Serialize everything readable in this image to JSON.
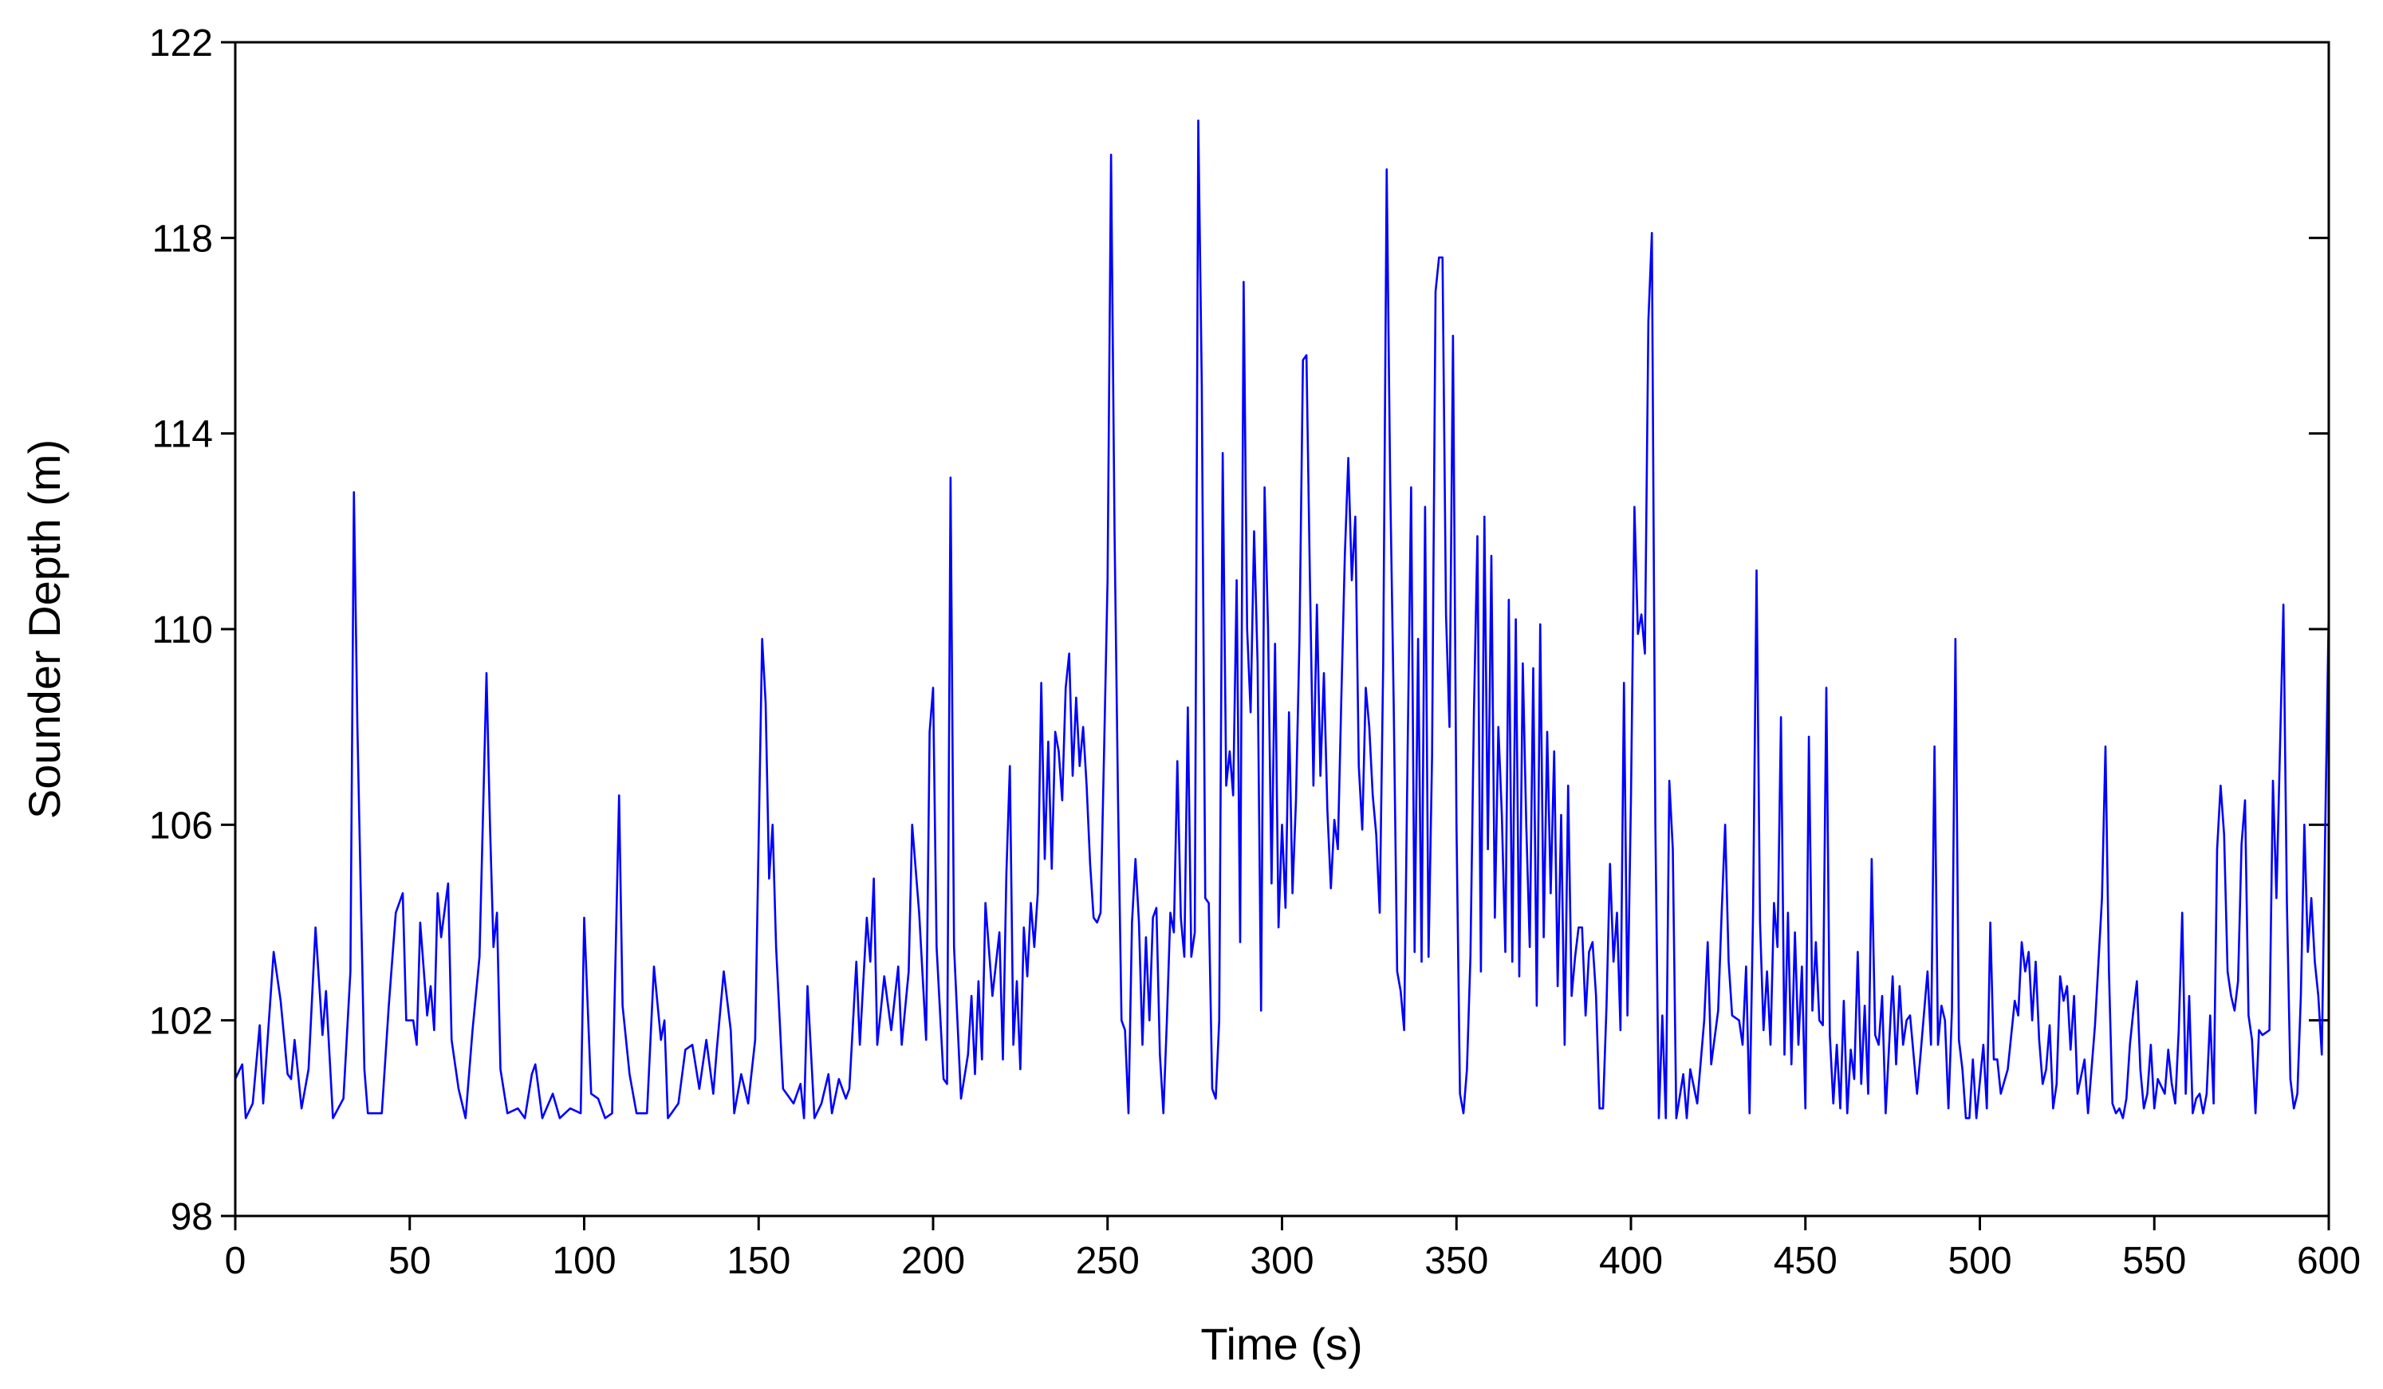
{
  "chart_data": {
    "type": "line",
    "xlabel": "Time (s)",
    "ylabel": "Sounder Depth (m)",
    "color": "#0000ff",
    "xlim": [
      0,
      600
    ],
    "ylim": [
      98,
      122
    ],
    "xticks": [
      0,
      50,
      100,
      150,
      200,
      250,
      300,
      350,
      400,
      450,
      500,
      550,
      600
    ],
    "yticks": [
      98,
      102,
      106,
      110,
      114,
      118,
      122
    ],
    "x": [
      0,
      2,
      3,
      5,
      7,
      8,
      11,
      13,
      15,
      16,
      17,
      19,
      21,
      23,
      25,
      26,
      28,
      31,
      33,
      34,
      35,
      37,
      38,
      42,
      44,
      46,
      48,
      49,
      51,
      52,
      53,
      55,
      56,
      57,
      58,
      59,
      61,
      62,
      64,
      66,
      68,
      70,
      72,
      73,
      74,
      75,
      76,
      78,
      81,
      83,
      85,
      86,
      88,
      91,
      93,
      96,
      99,
      100,
      102,
      104,
      106,
      108,
      110,
      111,
      113,
      115,
      118,
      120,
      122,
      123,
      124,
      127,
      129,
      131,
      133,
      135,
      137,
      138,
      140,
      142,
      143,
      145,
      147,
      149,
      151,
      152,
      153,
      154,
      155,
      157,
      160,
      162,
      163,
      164,
      166,
      168,
      170,
      171,
      173,
      175,
      176,
      178,
      179,
      181,
      182,
      183,
      184,
      186,
      188,
      190,
      191,
      193,
      194,
      196,
      198,
      199,
      200,
      201,
      203,
      204,
      205,
      206,
      208,
      210,
      211,
      212,
      213,
      214,
      215,
      217,
      219,
      220,
      221,
      222,
      223,
      224,
      225,
      226,
      227,
      228,
      229,
      230,
      231,
      232,
      233,
      234,
      235,
      236,
      237,
      238,
      239,
      240,
      241,
      242,
      243,
      244,
      245,
      246,
      247,
      248,
      249,
      250,
      251,
      252,
      253,
      254,
      255,
      256,
      257,
      258,
      259,
      260,
      261,
      262,
      263,
      264,
      265,
      266,
      267,
      268,
      269,
      270,
      271,
      272,
      273,
      274,
      275,
      276,
      277,
      278,
      279,
      280,
      281,
      282,
      283,
      284,
      285,
      286,
      287,
      288,
      289,
      290,
      291,
      292,
      293,
      294,
      295,
      296,
      297,
      298,
      299,
      300,
      301,
      302,
      303,
      304,
      305,
      306,
      307,
      308,
      309,
      310,
      311,
      312,
      313,
      314,
      315,
      316,
      317,
      318,
      319,
      320,
      321,
      322,
      323,
      324,
      325,
      326,
      327,
      328,
      329,
      330,
      331,
      332,
      333,
      334,
      335,
      336,
      337,
      338,
      339,
      340,
      341,
      342,
      343,
      344,
      345,
      346,
      347,
      348,
      349,
      350,
      351,
      352,
      353,
      354,
      355,
      356,
      357,
      358,
      359,
      360,
      361,
      362,
      363,
      364,
      365,
      366,
      367,
      368,
      369,
      370,
      371,
      372,
      373,
      374,
      375,
      376,
      377,
      378,
      379,
      380,
      381,
      382,
      383,
      384,
      385,
      386,
      387,
      388,
      389,
      390,
      391,
      392,
      393,
      394,
      395,
      396,
      397,
      398,
      399,
      400,
      401,
      402,
      403,
      404,
      405,
      406,
      407,
      408,
      409,
      410,
      411,
      412,
      413,
      415,
      416,
      417,
      419,
      421,
      422,
      423,
      425,
      426,
      427,
      428,
      429,
      431,
      432,
      433,
      434,
      435,
      436,
      437,
      438,
      439,
      440,
      441,
      442,
      443,
      444,
      445,
      446,
      447,
      448,
      449,
      450,
      451,
      452,
      453,
      454,
      455,
      456,
      457,
      458,
      459,
      460,
      461,
      462,
      463,
      464,
      465,
      466,
      467,
      468,
      469,
      470,
      471,
      472,
      473,
      475,
      476,
      477,
      478,
      479,
      480,
      482,
      483,
      485,
      486,
      487,
      488,
      489,
      490,
      491,
      492,
      493,
      494,
      495,
      496,
      497,
      498,
      499,
      501,
      502,
      503,
      504,
      505,
      506,
      508,
      510,
      511,
      512,
      513,
      514,
      515,
      516,
      517,
      518,
      519,
      520,
      521,
      522,
      523,
      524,
      525,
      526,
      527,
      528,
      530,
      531,
      533,
      535,
      536,
      537,
      538,
      539,
      540,
      541,
      542,
      543,
      544,
      545,
      546,
      547,
      548,
      549,
      550,
      551,
      553,
      554,
      555,
      556,
      557,
      558,
      559,
      560,
      561,
      562,
      563,
      564,
      565,
      566,
      567,
      568,
      569,
      570,
      571,
      572,
      573,
      574,
      575,
      576,
      577,
      578,
      579,
      580,
      581,
      583,
      584,
      585,
      586,
      587,
      588,
      589,
      590,
      591,
      592,
      593,
      594,
      595,
      596,
      597,
      598,
      599,
      600
    ],
    "values": [
      100.8,
      101.1,
      100,
      100.3,
      101.9,
      100.3,
      103.4,
      102.4,
      100.9,
      100.8,
      101.6,
      100.2,
      101,
      103.9,
      101.7,
      102.6,
      100,
      100.4,
      103,
      112.8,
      108,
      101,
      100.1,
      100.1,
      102.3,
      104.2,
      104.6,
      102,
      102,
      101.5,
      104,
      102.1,
      102.7,
      101.8,
      104.6,
      103.7,
      104.8,
      101.6,
      100.6,
      100,
      101.8,
      103.3,
      109.1,
      106,
      103.5,
      104.2,
      101,
      100.1,
      100.2,
      100,
      100.9,
      101.1,
      100,
      100.5,
      100,
      100.2,
      100.1,
      104.1,
      100.5,
      100.4,
      100,
      100.1,
      106.6,
      102.3,
      100.9,
      100.1,
      100.1,
      103.1,
      101.6,
      102,
      100,
      100.3,
      101.4,
      101.5,
      100.6,
      101.6,
      100.5,
      101.4,
      103,
      101.8,
      100.1,
      100.9,
      100.3,
      101.6,
      109.8,
      108.5,
      104.9,
      106,
      103.5,
      100.6,
      100.3,
      100.7,
      100,
      102.7,
      100,
      100.3,
      100.9,
      100.1,
      100.8,
      100.4,
      100.6,
      103.2,
      101.5,
      104.1,
      103.2,
      104.9,
      101.5,
      102.9,
      101.8,
      103.1,
      101.5,
      103,
      106,
      104.2,
      101.6,
      107.9,
      108.8,
      103.5,
      100.8,
      100.7,
      113.1,
      103.5,
      100.4,
      101.3,
      102.5,
      100.9,
      102.8,
      101.2,
      104.4,
      102.5,
      103.8,
      101.2,
      105,
      107.2,
      101.5,
      102.8,
      101,
      103.9,
      102.9,
      104.4,
      103.5,
      104.6,
      108.9,
      105.3,
      107.7,
      105.1,
      107.9,
      107.5,
      106.5,
      108.8,
      109.5,
      107,
      108.6,
      107.2,
      108,
      106.8,
      105.2,
      104.1,
      104,
      104.2,
      107.5,
      111,
      119.7,
      112,
      106.5,
      102,
      101.8,
      100.1,
      104,
      105.3,
      104,
      101.5,
      103.7,
      102,
      104.1,
      104.3,
      101.3,
      100.1,
      102,
      104.2,
      103.8,
      107.3,
      104.1,
      103.3,
      108.4,
      103.3,
      103.8,
      120.4,
      115,
      104.5,
      104.4,
      100.6,
      100.4,
      102,
      113.6,
      106.8,
      107.5,
      106.6,
      111,
      103.6,
      117.1,
      110,
      108.3,
      112,
      109.3,
      102.2,
      112.9,
      110,
      104.8,
      109.7,
      103.9,
      106,
      104.3,
      108.3,
      104.6,
      106.5,
      109.8,
      115.5,
      115.6,
      111,
      106.8,
      110.5,
      107,
      109.1,
      106.3,
      104.7,
      106.1,
      105.5,
      108.6,
      111.5,
      113.5,
      111,
      112.3,
      107.2,
      105.9,
      108.8,
      108,
      106.6,
      105.8,
      104.2,
      109.3,
      119.4,
      113,
      108.5,
      103,
      102.6,
      101.8,
      107.5,
      112.9,
      103.4,
      109.8,
      103.2,
      112.5,
      103.3,
      107.4,
      116.9,
      117.6,
      117.6,
      110.3,
      108,
      116,
      106,
      100.5,
      100.1,
      101,
      103.3,
      108.3,
      111.9,
      103,
      112.3,
      105.5,
      111.5,
      104.1,
      108,
      106.2,
      103.4,
      110.6,
      103.2,
      110.2,
      102.9,
      109.3,
      106,
      103.5,
      109.2,
      102.3,
      110.1,
      103.7,
      107.9,
      104.6,
      107.5,
      102.7,
      106.2,
      101.5,
      106.8,
      102.5,
      103.3,
      103.9,
      103.9,
      102.1,
      103.4,
      103.6,
      102.5,
      100.2,
      100.2,
      102.3,
      105.2,
      103.2,
      104.2,
      101.8,
      108.9,
      102.1,
      106.5,
      112.5,
      109.9,
      110.3,
      109.5,
      116.3,
      118.1,
      106,
      100,
      102.1,
      100,
      106.9,
      105.5,
      100,
      100.9,
      100,
      101,
      100.3,
      102,
      103.6,
      101.1,
      102.2,
      104.2,
      106,
      103.2,
      102.1,
      102,
      101.5,
      103.1,
      100.1,
      104.2,
      111.2,
      104,
      101.8,
      103,
      101.5,
      104.4,
      103.5,
      108.2,
      101.3,
      104.2,
      101.1,
      103.8,
      101.5,
      103.1,
      100.2,
      107.8,
      102.2,
      103.6,
      102,
      101.9,
      108.8,
      101.7,
      100.3,
      101.5,
      100.2,
      102.4,
      100.1,
      101.4,
      100.8,
      103.4,
      100.7,
      102.3,
      100.5,
      105.3,
      101.7,
      101.5,
      102.5,
      100.1,
      102.9,
      101.1,
      102.7,
      101.5,
      102,
      102.1,
      100.5,
      101.3,
      103,
      101.5,
      107.6,
      101.5,
      102.3,
      102,
      100.2,
      102.2,
      109.8,
      101.6,
      101,
      100,
      100,
      101.2,
      100,
      101.5,
      100.2,
      104,
      101.2,
      101.2,
      100.5,
      101,
      102.4,
      102.1,
      103.6,
      103,
      103.4,
      102,
      103.2,
      101.6,
      100.7,
      101,
      101.9,
      100.2,
      100.7,
      102.9,
      102.4,
      102.7,
      101.4,
      102.5,
      100.5,
      101.2,
      100.1,
      101.9,
      104.5,
      107.6,
      103,
      100.3,
      100.1,
      100.2,
      100,
      100.4,
      101.5,
      102.2,
      102.8,
      101,
      100.2,
      100.5,
      101.5,
      100.2,
      100.8,
      100.5,
      101.4,
      100.7,
      100.3,
      101.8,
      104.2,
      100.5,
      102.5,
      100.1,
      100.4,
      100.5,
      100.1,
      100.5,
      102.1,
      100.3,
      105.5,
      106.8,
      105.8,
      103,
      102.5,
      102.2,
      102.8,
      105.6,
      106.5,
      102.1,
      101.6,
      100.1,
      101.8,
      101.7,
      101.8,
      106.9,
      104.5,
      107.5,
      110.5,
      104.4,
      100.8,
      100.2,
      100.5,
      102.5,
      106,
      103.4,
      104.5,
      103.2,
      102.5,
      101.3,
      106,
      110.4
    ]
  }
}
